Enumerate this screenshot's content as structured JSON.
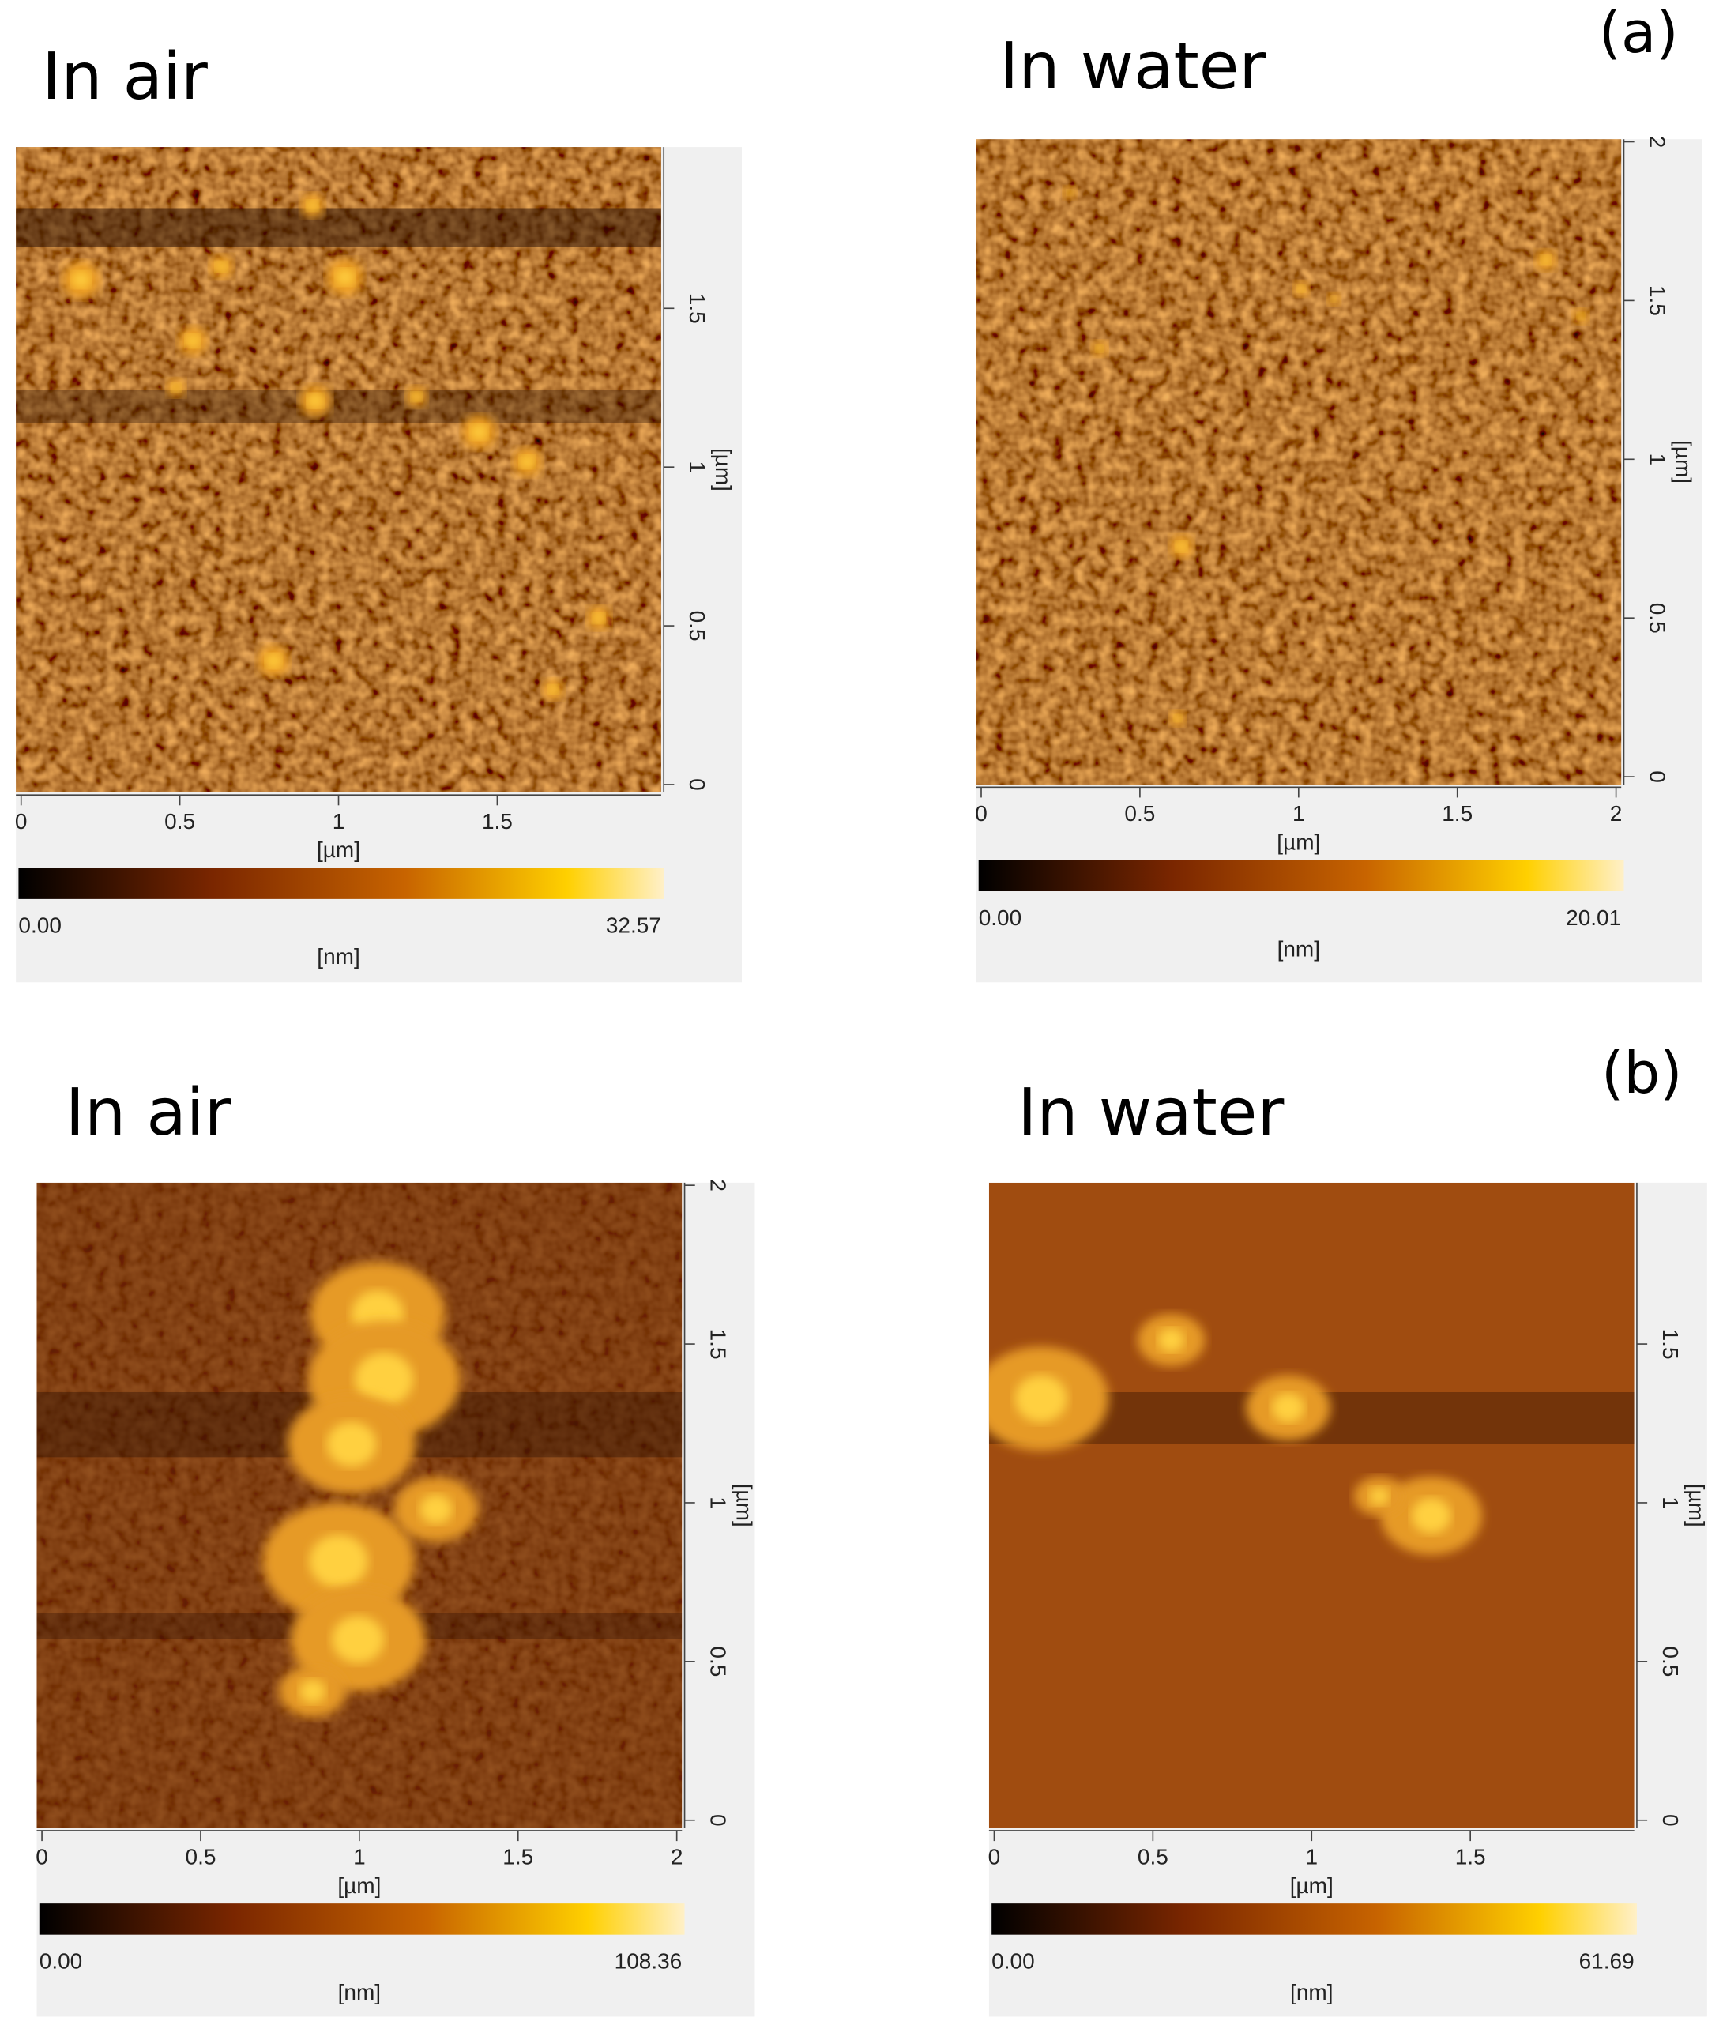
{
  "panels": [
    {
      "label": "(a)",
      "images": [
        {
          "title": "In air",
          "x_ticks": [
            "0",
            "0.5",
            "1",
            "1.5"
          ],
          "y_ticks": [
            "0",
            "0.5",
            "1",
            "1.5"
          ],
          "axis_unit": "[µm]",
          "colorbar": {
            "min": "0.00",
            "max": "32.57",
            "unit": "[nm]"
          }
        },
        {
          "title": "In water",
          "x_ticks": [
            "0",
            "0.5",
            "1",
            "1.5",
            "2"
          ],
          "y_ticks": [
            "0",
            "0.5",
            "1",
            "1.5",
            "2"
          ],
          "axis_unit": "[µm]",
          "colorbar": {
            "min": "0.00",
            "max": "20.01",
            "unit": "[nm]"
          }
        }
      ]
    },
    {
      "label": "(b)",
      "images": [
        {
          "title": "In air",
          "x_ticks": [
            "0",
            "0.5",
            "1",
            "1.5",
            "2"
          ],
          "y_ticks": [
            "0",
            "0.5",
            "1",
            "1.5",
            "2"
          ],
          "axis_unit": "[µm]",
          "colorbar": {
            "min": "0.00",
            "max": "108.36",
            "unit": "[nm]"
          }
        },
        {
          "title": "In water",
          "x_ticks": [
            "0",
            "0.5",
            "1",
            "1.5"
          ],
          "y_ticks": [
            "0",
            "0.5",
            "1",
            "1.5"
          ],
          "axis_unit": "[µm]",
          "colorbar": {
            "min": "0.00",
            "max": "61.69",
            "unit": "[nm]"
          }
        }
      ]
    }
  ]
}
